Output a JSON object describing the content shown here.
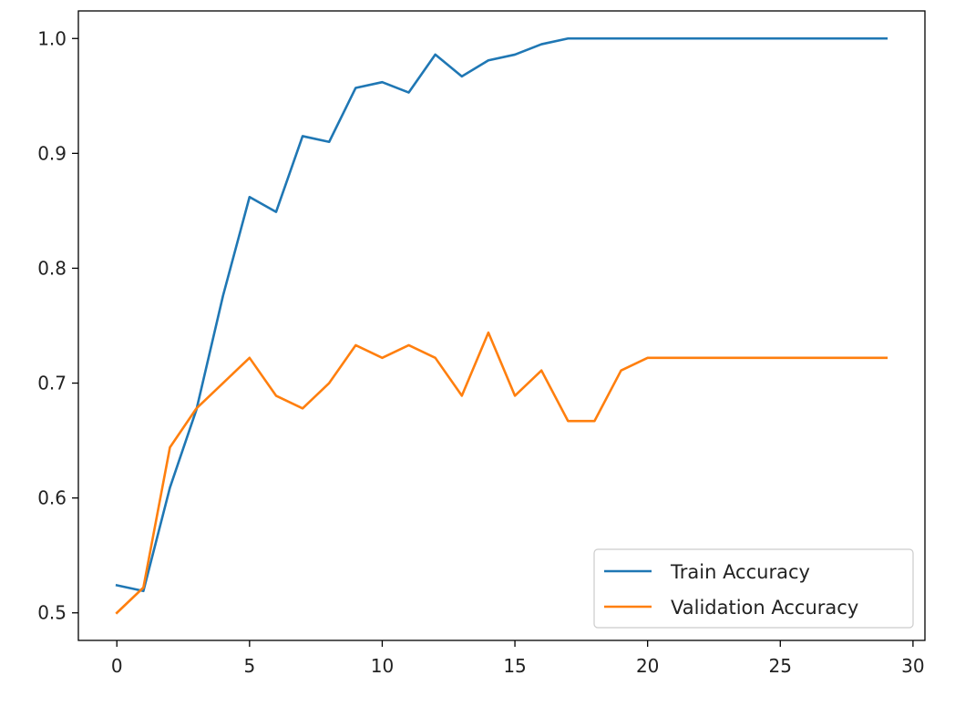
{
  "chart_data": {
    "type": "line",
    "title": "",
    "xlabel": "",
    "ylabel": "",
    "xlim": [
      -1.45,
      30.45
    ],
    "ylim": [
      0.476,
      1.024
    ],
    "xticks": [
      0,
      5,
      10,
      15,
      20,
      25,
      30
    ],
    "xtick_labels": [
      "0",
      "5",
      "10",
      "15",
      "20",
      "25",
      "30"
    ],
    "yticks": [
      0.5,
      0.6,
      0.7,
      0.8,
      0.9,
      1.0
    ],
    "ytick_labels": [
      "0.5",
      "0.6",
      "0.7",
      "0.8",
      "0.9",
      "1.0"
    ],
    "grid": false,
    "legend_position": "lower-right",
    "x": [
      0,
      1,
      2,
      3,
      4,
      5,
      6,
      7,
      8,
      9,
      10,
      11,
      12,
      13,
      14,
      15,
      16,
      17,
      18,
      19,
      20,
      21,
      22,
      23,
      24,
      25,
      26,
      27,
      28,
      29
    ],
    "series": [
      {
        "name": "Train Accuracy",
        "color": "#1f77b4",
        "values": [
          0.524,
          0.519,
          0.609,
          0.677,
          0.776,
          0.862,
          0.849,
          0.915,
          0.91,
          0.957,
          0.962,
          0.953,
          0.986,
          0.967,
          0.981,
          0.986,
          0.995,
          1.0,
          1.0,
          1.0,
          1.0,
          1.0,
          1.0,
          1.0,
          1.0,
          1.0,
          1.0,
          1.0,
          1.0,
          1.0
        ]
      },
      {
        "name": "Validation Accuracy",
        "color": "#ff7f0e",
        "values": [
          0.5,
          0.522,
          0.644,
          0.678,
          0.7,
          0.722,
          0.689,
          0.678,
          0.7,
          0.733,
          0.722,
          0.733,
          0.722,
          0.689,
          0.744,
          0.689,
          0.711,
          0.667,
          0.667,
          0.711,
          0.722,
          0.722,
          0.722,
          0.722,
          0.722,
          0.722,
          0.722,
          0.722,
          0.722,
          0.722
        ]
      }
    ]
  }
}
